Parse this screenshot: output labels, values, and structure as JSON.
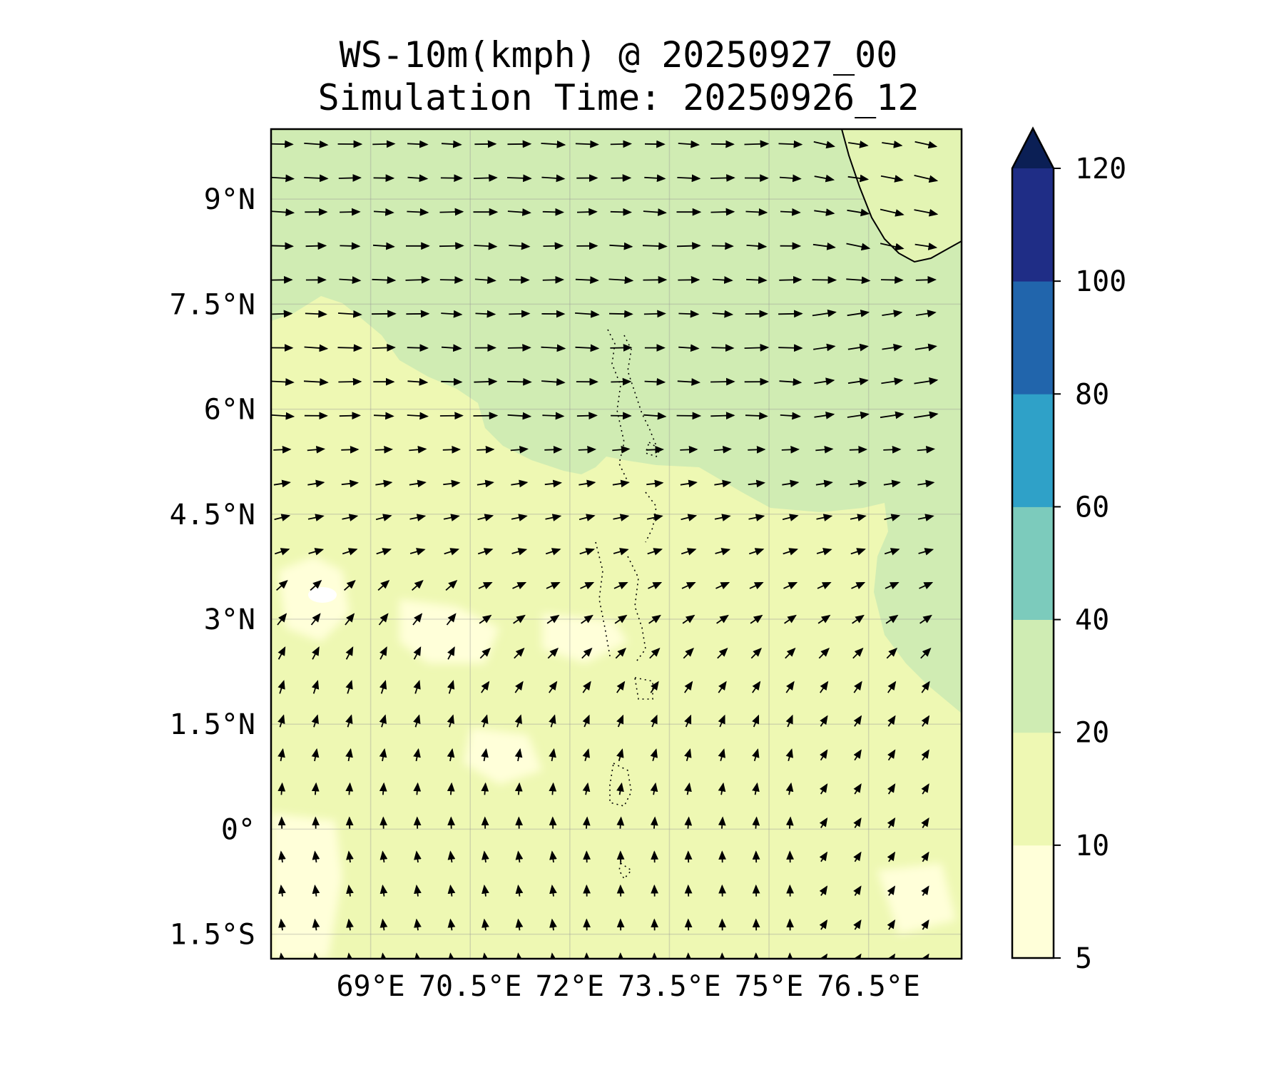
{
  "title": "WS-10m(kmph) @ 20250927_00",
  "subtitle": "Simulation Time: 20250926_12",
  "chart_data": {
    "type": "heatmap",
    "variable": "10 m wind speed",
    "units": "kmph",
    "extent": {
      "lon": [
        67.5,
        77.9
      ],
      "lat": [
        -1.85,
        10.0
      ]
    },
    "lat_ticks": [
      {
        "value": 9.0,
        "label": "9°N"
      },
      {
        "value": 7.5,
        "label": "7.5°N"
      },
      {
        "value": 6.0,
        "label": "6°N"
      },
      {
        "value": 4.5,
        "label": "4.5°N"
      },
      {
        "value": 3.0,
        "label": "3°N"
      },
      {
        "value": 1.5,
        "label": "1.5°N"
      },
      {
        "value": 0.0,
        "label": "0°"
      },
      {
        "value": -1.5,
        "label": "1.5°S"
      }
    ],
    "lon_ticks": [
      {
        "value": 69.0,
        "label": "69°E"
      },
      {
        "value": 70.5,
        "label": "70.5°E"
      },
      {
        "value": 72.0,
        "label": "72°E"
      },
      {
        "value": 73.5,
        "label": "73.5°E"
      },
      {
        "value": 75.0,
        "label": "75°E"
      },
      {
        "value": 76.5,
        "label": "76.5°E"
      }
    ],
    "grid": true,
    "colorbar": {
      "levels": [
        5,
        10,
        20,
        40,
        60,
        80,
        100,
        120
      ],
      "tick_labels": [
        "5",
        "10",
        "20",
        "40",
        "60",
        "80",
        "100",
        "120"
      ],
      "colors": [
        "#ffffd9",
        "#eef8b3",
        "#cfecb3",
        "#7ccbbc",
        "#2fa1c8",
        "#2165ac",
        "#1f2d86"
      ],
      "extend_color": "#0b1f55",
      "extend": "max"
    },
    "field_colors": {
      "low": "#f6fbc7",
      "mid": "#eef8b3",
      "high": "#d0ecb3",
      "calm": "#ffffff"
    },
    "wind_vectors": {
      "grid": "regular lat-lon, about 0.48° spacing",
      "north_region": "westerly flow, arrows pointing east",
      "south_region": "southerly flow, arrows pointing north to north-north-west",
      "transition": "arrows turn from north-east to east between 1.5°N and 4°N"
    },
    "coastlines": [
      "southern tip of India (top-right)",
      "Maldives atolls (dotted chain near 73.2–73.6°E)"
    ]
  }
}
